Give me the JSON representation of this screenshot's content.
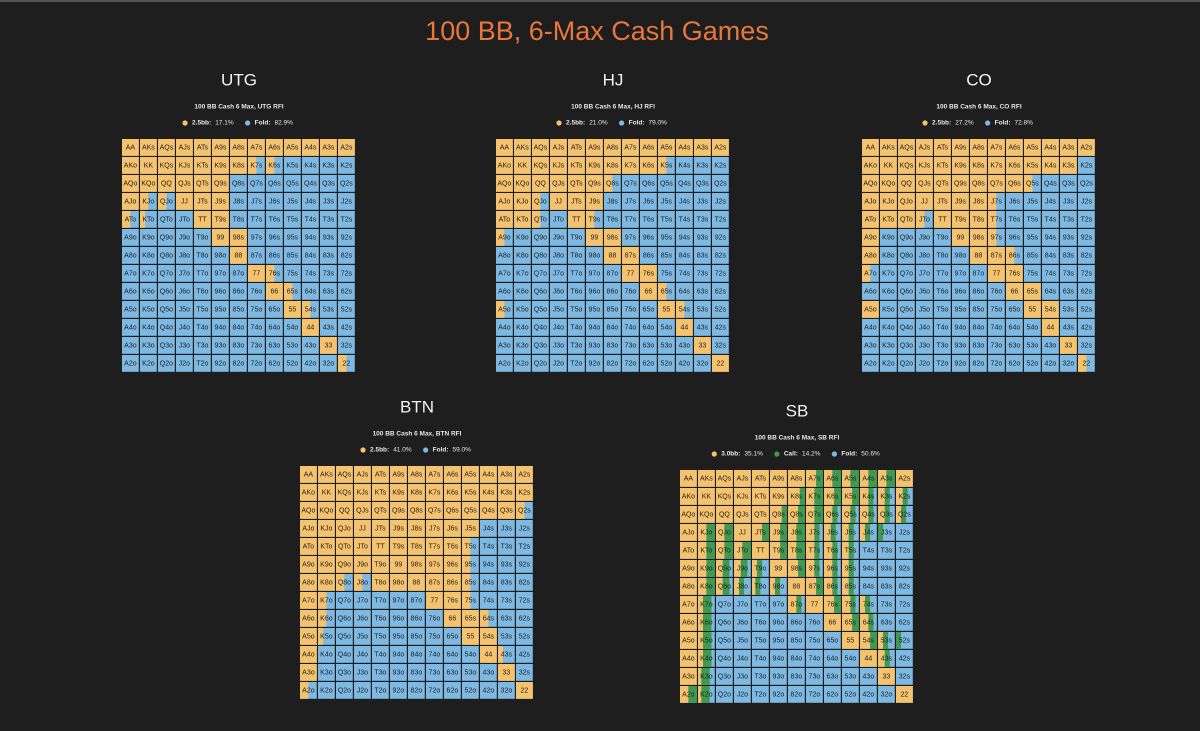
{
  "title": "100 BB, 6-Max Cash Games",
  "hands": [
    [
      "AA",
      "AKs",
      "AQs",
      "AJs",
      "ATs",
      "A9s",
      "A8s",
      "A7s",
      "A6s",
      "A5s",
      "A4s",
      "A3s",
      "A2s"
    ],
    [
      "AKo",
      "KK",
      "KQs",
      "KJs",
      "KTs",
      "K9s",
      "K8s",
      "K7s",
      "K6s",
      "K5s",
      "K4s",
      "K3s",
      "K2s"
    ],
    [
      "AQo",
      "KQo",
      "QQ",
      "QJs",
      "QTs",
      "Q9s",
      "Q8s",
      "Q7s",
      "Q6s",
      "Q5s",
      "Q4s",
      "Q3s",
      "Q2s"
    ],
    [
      "AJo",
      "KJo",
      "QJo",
      "JJ",
      "JTs",
      "J9s",
      "J8s",
      "J7s",
      "J6s",
      "J5s",
      "J4s",
      "J3s",
      "J2s"
    ],
    [
      "ATo",
      "KTo",
      "QTo",
      "JTo",
      "TT",
      "T9s",
      "T8s",
      "T7s",
      "T6s",
      "T5s",
      "T4s",
      "T3s",
      "T2s"
    ],
    [
      "A9o",
      "K9o",
      "Q9o",
      "J9o",
      "T9o",
      "99",
      "98s",
      "97s",
      "96s",
      "95s",
      "94s",
      "93s",
      "92s"
    ],
    [
      "A8o",
      "K8o",
      "Q8o",
      "J8o",
      "T8o",
      "98o",
      "88",
      "87s",
      "86s",
      "85s",
      "84s",
      "83s",
      "82s"
    ],
    [
      "A7o",
      "K7o",
      "Q7o",
      "J7o",
      "T7o",
      "97o",
      "87o",
      "77",
      "76s",
      "75s",
      "74s",
      "73s",
      "72s"
    ],
    [
      "A6o",
      "K6o",
      "Q6o",
      "J6o",
      "T6o",
      "96o",
      "86o",
      "76o",
      "66",
      "65s",
      "64s",
      "63s",
      "62s"
    ],
    [
      "A5o",
      "K5o",
      "Q5o",
      "J5o",
      "T5o",
      "95o",
      "85o",
      "75o",
      "65o",
      "55",
      "54s",
      "53s",
      "52s"
    ],
    [
      "A4o",
      "K4o",
      "Q4o",
      "J4o",
      "T4o",
      "94o",
      "84o",
      "74o",
      "64o",
      "54o",
      "44",
      "43s",
      "42s"
    ],
    [
      "A3o",
      "K3o",
      "Q3o",
      "J3o",
      "T3o",
      "93o",
      "83o",
      "73o",
      "63o",
      "53o",
      "43o",
      "33",
      "32s"
    ],
    [
      "A2o",
      "K2o",
      "Q2o",
      "J2o",
      "T2o",
      "92o",
      "82o",
      "72o",
      "62o",
      "52o",
      "42o",
      "32o",
      "22"
    ]
  ],
  "panels": [
    {
      "position": "UTG",
      "subtitle": "100 BB Cash 6 Max, UTG RFI",
      "legend": [
        {
          "name": "2.5bb:",
          "value": "17.1%",
          "color": "#f5c26e"
        },
        {
          "name": "Fold:",
          "value": "82.9%",
          "color": "#7db9e2"
        }
      ],
      "raise": [
        [
          1,
          1,
          1,
          1,
          1,
          1,
          1,
          1,
          1,
          1,
          1,
          1,
          1
        ],
        [
          1,
          1,
          1,
          1,
          1,
          1,
          1,
          0.5,
          0.5,
          0,
          0,
          0,
          0
        ],
        [
          1,
          1,
          1,
          1,
          1,
          1,
          0,
          0,
          0,
          0,
          0,
          0,
          0
        ],
        [
          1,
          0.5,
          0.5,
          1,
          1,
          1,
          0,
          0,
          0,
          0,
          0,
          0,
          0
        ],
        [
          0.5,
          0.3,
          0,
          0,
          1,
          1,
          0,
          0,
          0,
          0,
          0,
          0,
          0
        ],
        [
          0,
          0,
          0,
          0,
          0,
          1,
          1,
          0,
          0,
          0,
          0,
          0,
          0
        ],
        [
          0,
          0,
          0,
          0,
          0,
          0,
          1,
          0,
          0,
          0,
          0,
          0,
          0
        ],
        [
          0,
          0,
          0,
          0,
          0,
          0,
          0,
          1,
          0.5,
          0,
          0,
          0,
          0
        ],
        [
          0,
          0,
          0,
          0,
          0,
          0,
          0,
          0,
          1,
          0.5,
          0,
          0,
          0
        ],
        [
          0,
          0,
          0,
          0,
          0,
          0,
          0,
          0,
          0,
          1,
          0.5,
          0,
          0
        ],
        [
          0,
          0,
          0,
          0,
          0,
          0,
          0,
          0,
          0,
          0,
          1,
          0,
          0
        ],
        [
          0,
          0,
          0,
          0,
          0,
          0,
          0,
          0,
          0,
          0,
          0,
          1,
          0
        ],
        [
          0,
          0,
          0,
          0,
          0,
          0,
          0,
          0,
          0,
          0,
          0,
          0,
          0.5
        ]
      ]
    },
    {
      "position": "HJ",
      "subtitle": "100 BB Cash 6 Max, HJ RFI",
      "legend": [
        {
          "name": "2.5bb:",
          "value": "21.0%",
          "color": "#f5c26e"
        },
        {
          "name": "Fold:",
          "value": "79.0%",
          "color": "#7db9e2"
        }
      ],
      "raise": [
        [
          1,
          1,
          1,
          1,
          1,
          1,
          1,
          1,
          1,
          1,
          1,
          1,
          1
        ],
        [
          1,
          1,
          1,
          1,
          1,
          1,
          1,
          1,
          1,
          0.5,
          0,
          0,
          0
        ],
        [
          1,
          1,
          1,
          1,
          1,
          1,
          0.5,
          0,
          0,
          0,
          0,
          0,
          0
        ],
        [
          1,
          1,
          0.5,
          1,
          1,
          1,
          0,
          0,
          0,
          0,
          0,
          0,
          0
        ],
        [
          1,
          1,
          0.5,
          0,
          1,
          0.5,
          0,
          0,
          0,
          0,
          0,
          0,
          0
        ],
        [
          0.5,
          0,
          0,
          0,
          0,
          1,
          1,
          0,
          0,
          0,
          0,
          0,
          0
        ],
        [
          0,
          0,
          0,
          0,
          0,
          0,
          1,
          1,
          0,
          0,
          0,
          0,
          0
        ],
        [
          0,
          0,
          0,
          0,
          0,
          0,
          0,
          1,
          1,
          0,
          0,
          0,
          0
        ],
        [
          0,
          0,
          0,
          0,
          0,
          0,
          0,
          0,
          1,
          0.5,
          0,
          0,
          0
        ],
        [
          0.5,
          0,
          0,
          0,
          0,
          0,
          0,
          0,
          0,
          1,
          0.5,
          0,
          0
        ],
        [
          0,
          0,
          0,
          0,
          0,
          0,
          0,
          0,
          0,
          0,
          1,
          0,
          0
        ],
        [
          0,
          0,
          0,
          0,
          0,
          0,
          0,
          0,
          0,
          0,
          0,
          1,
          0
        ],
        [
          0,
          0,
          0,
          0,
          0,
          0,
          0,
          0,
          0,
          0,
          0,
          0,
          1
        ]
      ]
    },
    {
      "position": "CO",
      "subtitle": "100 BB Cash 6 Max, CO RFI",
      "legend": [
        {
          "name": "2.5bb:",
          "value": "27.2%",
          "color": "#f5c26e"
        },
        {
          "name": "Fold:",
          "value": "72.8%",
          "color": "#7db9e2"
        }
      ],
      "raise": [
        [
          1,
          1,
          1,
          1,
          1,
          1,
          1,
          1,
          1,
          1,
          1,
          1,
          1
        ],
        [
          1,
          1,
          1,
          1,
          1,
          1,
          1,
          1,
          1,
          1,
          1,
          1,
          0
        ],
        [
          1,
          1,
          1,
          1,
          1,
          1,
          1,
          1,
          1,
          0.5,
          0,
          0,
          0
        ],
        [
          1,
          1,
          1,
          1,
          1,
          1,
          1,
          0.5,
          0,
          0,
          0,
          0,
          0
        ],
        [
          1,
          1,
          1,
          0.5,
          1,
          1,
          1,
          0.5,
          0,
          0,
          0,
          0,
          0
        ],
        [
          1,
          0,
          0,
          0,
          0,
          1,
          1,
          0.5,
          0,
          0,
          0,
          0,
          0
        ],
        [
          1,
          0,
          0,
          0,
          0,
          0,
          1,
          1,
          0.5,
          0,
          0,
          0,
          0
        ],
        [
          0.5,
          0,
          0,
          0,
          0,
          0,
          0,
          1,
          1,
          0,
          0,
          0,
          0
        ],
        [
          0,
          0,
          0,
          0,
          0,
          0,
          0,
          0,
          1,
          1,
          0,
          0,
          0
        ],
        [
          1,
          0,
          0,
          0,
          0,
          0,
          0,
          0,
          0,
          1,
          1,
          0,
          0
        ],
        [
          0,
          0,
          0,
          0,
          0,
          0,
          0,
          0,
          0,
          0,
          1,
          0,
          0
        ],
        [
          0,
          0,
          0,
          0,
          0,
          0,
          0,
          0,
          0,
          0,
          0,
          1,
          0
        ],
        [
          0,
          0,
          0,
          0,
          0,
          0,
          0,
          0,
          0,
          0,
          0,
          0,
          0.5
        ]
      ]
    },
    {
      "position": "BTN",
      "subtitle": "100 BB Cash 6 Max, BTN RFI",
      "legend": [
        {
          "name": "2.5bb:",
          "value": "41.0%",
          "color": "#f5c26e"
        },
        {
          "name": "Fold:",
          "value": "59.0%",
          "color": "#7db9e2"
        }
      ],
      "raise": [
        [
          1,
          1,
          1,
          1,
          1,
          1,
          1,
          1,
          1,
          1,
          1,
          1,
          1
        ],
        [
          1,
          1,
          1,
          1,
          1,
          1,
          1,
          1,
          1,
          1,
          1,
          1,
          1
        ],
        [
          1,
          1,
          1,
          1,
          1,
          1,
          1,
          1,
          1,
          1,
          1,
          1,
          0.5
        ],
        [
          1,
          1,
          1,
          1,
          1,
          1,
          1,
          1,
          1,
          1,
          0,
          0,
          0
        ],
        [
          1,
          1,
          1,
          1,
          1,
          1,
          1,
          1,
          1,
          0.5,
          0,
          0,
          0
        ],
        [
          1,
          1,
          1,
          1,
          1,
          1,
          1,
          1,
          1,
          0.5,
          0,
          0,
          0
        ],
        [
          1,
          1,
          0.5,
          0.5,
          1,
          1,
          1,
          1,
          1,
          0.5,
          0,
          0,
          0
        ],
        [
          1,
          0.5,
          0,
          0,
          0,
          0,
          0,
          1,
          1,
          0.5,
          0,
          0,
          0
        ],
        [
          1,
          0.5,
          0,
          0,
          0,
          0,
          0,
          0,
          1,
          1,
          0.5,
          0,
          0
        ],
        [
          1,
          0.3,
          0,
          0,
          0,
          0,
          0,
          0,
          0,
          1,
          1,
          0,
          0
        ],
        [
          1,
          0,
          0,
          0,
          0,
          0,
          0,
          0,
          0,
          0,
          1,
          0.3,
          0
        ],
        [
          1,
          0,
          0,
          0,
          0,
          0,
          0,
          0,
          0,
          0,
          0,
          1,
          0
        ],
        [
          0.5,
          0,
          0,
          0,
          0,
          0,
          0,
          0,
          0,
          0,
          0,
          0,
          1
        ]
      ]
    },
    {
      "position": "SB",
      "subtitle": "100 BB Cash 6 Max, SB RFI",
      "legend": [
        {
          "name": "3.0bb:",
          "value": "35.1%",
          "color": "#f5c26e"
        },
        {
          "name": "Call:",
          "value": "14.2%",
          "color": "#3f9a4f"
        },
        {
          "name": "Fold:",
          "value": "50.6%",
          "color": "#7db9e2"
        }
      ],
      "raise": [
        [
          1,
          1,
          1,
          1,
          1,
          1,
          1,
          0.6,
          0.5,
          0.5,
          0.5,
          0.5,
          1
        ],
        [
          1,
          1,
          1,
          1,
          1,
          1,
          0.7,
          0.5,
          0.6,
          0.6,
          0.5,
          0.4,
          0.4
        ],
        [
          1,
          1,
          1,
          1,
          1,
          0.7,
          0.6,
          0.5,
          0.5,
          0.5,
          0.5,
          0.4,
          0.3
        ],
        [
          1,
          0.5,
          0.5,
          1,
          0.6,
          0.6,
          0.5,
          0.5,
          0.4,
          0.4,
          0.3,
          0,
          0
        ],
        [
          1,
          0.5,
          0.5,
          0.5,
          1,
          0.6,
          0.5,
          0.5,
          0.5,
          0.4,
          0,
          0,
          0
        ],
        [
          1,
          0.5,
          0.4,
          0.4,
          0.3,
          1,
          0.6,
          0.5,
          0.5,
          0.4,
          0,
          0,
          0
        ],
        [
          1,
          0.5,
          0.4,
          0.3,
          0.2,
          0.3,
          1,
          0.6,
          0.5,
          0.4,
          0,
          0,
          0
        ],
        [
          1,
          0.3,
          0,
          0,
          0,
          0,
          0.5,
          1,
          0.6,
          0.5,
          0.3,
          0,
          0
        ],
        [
          1,
          0.3,
          0,
          0,
          0,
          0,
          0,
          0,
          1,
          0.6,
          0.5,
          0,
          0
        ],
        [
          1,
          0.3,
          0,
          0,
          0,
          0,
          0,
          0,
          0,
          1,
          0.6,
          0.3,
          0
        ],
        [
          1,
          0.3,
          0,
          0,
          0,
          0,
          0,
          0,
          0,
          0,
          1,
          0.4,
          0
        ],
        [
          1,
          0.2,
          0,
          0,
          0,
          0,
          0,
          0,
          0,
          0,
          0,
          1,
          0
        ],
        [
          0.5,
          0.2,
          0,
          0,
          0,
          0,
          0,
          0,
          0,
          0,
          0,
          0,
          1
        ]
      ],
      "call": [
        [
          0,
          0,
          0,
          0,
          0,
          0,
          0,
          0.4,
          0.5,
          0.5,
          0.5,
          0.5,
          0
        ],
        [
          0,
          0,
          0,
          0,
          0,
          0,
          0.3,
          0.5,
          0.4,
          0.4,
          0.3,
          0.3,
          0.3
        ],
        [
          0,
          0,
          0,
          0,
          0,
          0.3,
          0.4,
          0.5,
          0.3,
          0.3,
          0.3,
          0.3,
          0.3
        ],
        [
          0,
          0.5,
          0.5,
          0,
          0.4,
          0.4,
          0.5,
          0.3,
          0.3,
          0.3,
          0.3,
          0.3,
          0
        ],
        [
          0,
          0.5,
          0.5,
          0.5,
          0,
          0.4,
          0.5,
          0.3,
          0.3,
          0.3,
          0,
          0,
          0
        ],
        [
          0,
          0.5,
          0.4,
          0.4,
          0.3,
          0,
          0.4,
          0.3,
          0.3,
          0.3,
          0,
          0,
          0
        ],
        [
          0,
          0.5,
          0.4,
          0.3,
          0.3,
          0.3,
          0,
          0.4,
          0.3,
          0.3,
          0,
          0,
          0
        ],
        [
          0,
          0.5,
          0,
          0,
          0,
          0,
          0.3,
          0,
          0.4,
          0.3,
          0.3,
          0,
          0
        ],
        [
          0,
          0.5,
          0,
          0,
          0,
          0,
          0,
          0,
          0,
          0.4,
          0.3,
          0,
          0
        ],
        [
          0,
          0.5,
          0,
          0,
          0,
          0,
          0,
          0,
          0,
          0,
          0.4,
          0.3,
          0.3
        ],
        [
          0,
          0.5,
          0,
          0,
          0,
          0,
          0,
          0,
          0,
          0,
          0,
          0.3,
          0
        ],
        [
          0,
          0.5,
          0,
          0,
          0,
          0,
          0,
          0,
          0,
          0,
          0,
          0,
          0
        ],
        [
          0.5,
          0.5,
          0,
          0,
          0,
          0,
          0,
          0,
          0,
          0,
          0,
          0,
          0
        ]
      ]
    }
  ]
}
